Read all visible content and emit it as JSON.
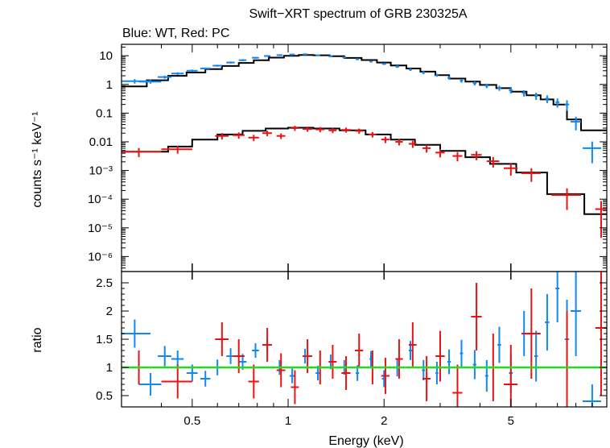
{
  "chart_data": [
    {
      "type": "scatter",
      "title": "Swift−XRT spectrum of GRB 230325A",
      "subtitle": "Blue: WT, Red: PC",
      "ylabel": "counts s⁻¹ keV⁻¹",
      "xlabel": "",
      "x_scale": "log",
      "y_scale": "log",
      "xlim": [
        0.3,
        10
      ],
      "ylim": [
        3e-07,
        25
      ],
      "y_tick_labels": [
        "10",
        "1",
        "0.1",
        "0.01",
        "10⁻³",
        "10⁻⁴",
        "10⁻⁵",
        "10⁻⁶"
      ],
      "y_tick_values": [
        10,
        1,
        0.1,
        0.01,
        0.001,
        0.0001,
        1e-05,
        1e-06
      ],
      "colors": {
        "wt": "#1188ee",
        "pc": "#ee1111",
        "model": "#000000"
      },
      "series": [
        {
          "key": "wt",
          "x": [
            0.33,
            0.37,
            0.41,
            0.45,
            0.5,
            0.55,
            0.6,
            0.66,
            0.72,
            0.79,
            0.86,
            0.94,
            1.03,
            1.13,
            1.24,
            1.36,
            1.5,
            1.65,
            1.82,
            2.0,
            2.2,
            2.42,
            2.66,
            2.93,
            3.2,
            3.5,
            3.85,
            4.2,
            4.6,
            5.0,
            5.5,
            6.0,
            6.5,
            7.0,
            7.5,
            8.0,
            9.0
          ],
          "y": [
            1.3,
            1.25,
            1.8,
            2.4,
            3.0,
            3.6,
            4.5,
            5.8,
            7.0,
            8.5,
            9.8,
            10.5,
            11.0,
            11.2,
            10.4,
            9.6,
            8.8,
            7.6,
            6.3,
            5.2,
            4.2,
            3.3,
            2.6,
            2.1,
            1.7,
            1.35,
            1.1,
            0.9,
            0.75,
            0.62,
            0.5,
            0.4,
            0.32,
            0.24,
            0.2,
            0.05,
            0.006
          ],
          "xerr": [
            0.04,
            0.03,
            0.02,
            0.02,
            0.02,
            0.02,
            0.02,
            0.02,
            0.02,
            0.02,
            0.02,
            0.02,
            0.02,
            0.02,
            0.02,
            0.02,
            0.02,
            0.02,
            0.02,
            0.03,
            0.03,
            0.03,
            0.03,
            0.03,
            0.04,
            0.04,
            0.05,
            0.05,
            0.06,
            0.07,
            0.08,
            0.08,
            0.1,
            0.1,
            0.12,
            0.3,
            0.6
          ],
          "yerr_rel": [
            0.18,
            0.15,
            0.12,
            0.1,
            0.1,
            0.08,
            0.08,
            0.08,
            0.08,
            0.07,
            0.07,
            0.07,
            0.07,
            0.07,
            0.07,
            0.07,
            0.07,
            0.08,
            0.08,
            0.08,
            0.1,
            0.1,
            0.12,
            0.12,
            0.14,
            0.15,
            0.16,
            0.18,
            0.2,
            0.22,
            0.25,
            0.28,
            0.3,
            0.35,
            0.4,
            0.5,
            0.7
          ]
        },
        {
          "key": "pc",
          "x": [
            0.34,
            0.45,
            0.62,
            0.7,
            0.78,
            0.86,
            0.95,
            1.05,
            1.15,
            1.26,
            1.38,
            1.52,
            1.67,
            1.84,
            2.02,
            2.23,
            2.46,
            2.72,
            3.0,
            3.4,
            3.9,
            4.4,
            5.0,
            5.8,
            7.5,
            9.6
          ],
          "y": [
            0.0045,
            0.0055,
            0.016,
            0.017,
            0.014,
            0.02,
            0.016,
            0.03,
            0.028,
            0.027,
            0.025,
            0.026,
            0.024,
            0.018,
            0.012,
            0.01,
            0.0085,
            0.006,
            0.0042,
            0.0032,
            0.0035,
            0.0021,
            0.0012,
            0.0008,
            0.00014,
            4.5e-05
          ],
          "xerr": [
            0.06,
            0.05,
            0.03,
            0.03,
            0.03,
            0.03,
            0.03,
            0.03,
            0.04,
            0.04,
            0.04,
            0.05,
            0.05,
            0.05,
            0.06,
            0.06,
            0.07,
            0.08,
            0.1,
            0.12,
            0.15,
            0.2,
            0.25,
            0.4,
            0.8,
            0.4
          ],
          "yerr_rel": [
            0.35,
            0.3,
            0.25,
            0.25,
            0.25,
            0.22,
            0.22,
            0.2,
            0.2,
            0.2,
            0.2,
            0.2,
            0.2,
            0.22,
            0.25,
            0.25,
            0.28,
            0.3,
            0.32,
            0.35,
            0.35,
            0.4,
            0.45,
            0.5,
            0.7,
            0.9
          ]
        }
      ],
      "model": [
        {
          "key": "wt",
          "edges": [
            0.3,
            0.36,
            0.42,
            0.48,
            0.55,
            0.62,
            0.7,
            0.78,
            0.87,
            0.97,
            1.08,
            1.2,
            1.35,
            1.5,
            1.7,
            1.9,
            2.1,
            2.35,
            2.6,
            2.9,
            3.2,
            3.6,
            4.0,
            4.5,
            5.0,
            5.6,
            6.2,
            6.8,
            7.5,
            8.3,
            10
          ],
          "values": [
            0.85,
            1.4,
            2.0,
            2.6,
            3.4,
            4.4,
            5.6,
            7.0,
            8.6,
            10.0,
            10.6,
            10.4,
            9.6,
            8.4,
            7.1,
            5.8,
            4.6,
            3.6,
            2.8,
            2.1,
            1.6,
            1.25,
            0.96,
            0.74,
            0.56,
            0.42,
            0.3,
            0.2,
            0.06,
            0.025
          ]
        },
        {
          "key": "pc",
          "edges": [
            0.3,
            0.42,
            0.5,
            0.6,
            0.72,
            0.85,
            1.0,
            1.2,
            1.45,
            1.75,
            2.1,
            2.5,
            3.0,
            3.6,
            4.3,
            5.2,
            6.5,
            8.5,
            10
          ],
          "values": [
            0.0045,
            0.0068,
            0.012,
            0.018,
            0.024,
            0.029,
            0.031,
            0.029,
            0.025,
            0.018,
            0.012,
            0.0078,
            0.0048,
            0.0029,
            0.0017,
            0.00085,
            0.00015,
            3e-05
          ]
        }
      ]
    },
    {
      "type": "scatter",
      "ylabel": "ratio",
      "xlabel": "Energy (keV)",
      "x_scale": "log",
      "xlim": [
        0.3,
        10
      ],
      "ylim": [
        0.3,
        2.7
      ],
      "x_tick_labels": [
        "0.5",
        "1",
        "2",
        "5"
      ],
      "x_tick_values": [
        0.5,
        1,
        2,
        5
      ],
      "y_tick_labels": [
        "2.5",
        "2",
        "1.5",
        "1",
        "0.5"
      ],
      "y_tick_values": [
        2.5,
        2,
        1.5,
        1,
        0.5
      ],
      "reference_line": {
        "y": 1,
        "color": "#22dd22"
      },
      "series": [
        {
          "key": "wt",
          "x": [
            0.33,
            0.37,
            0.41,
            0.45,
            0.5,
            0.55,
            0.6,
            0.66,
            0.72,
            0.79,
            0.86,
            0.94,
            1.03,
            1.13,
            1.24,
            1.36,
            1.5,
            1.65,
            1.82,
            2.0,
            2.2,
            2.42,
            2.66,
            2.93,
            3.2,
            3.5,
            3.85,
            4.2,
            4.6,
            5.0,
            5.5,
            6.0,
            6.5,
            7.0,
            7.5,
            8.0,
            9.0
          ],
          "y": [
            1.6,
            0.7,
            1.2,
            1.15,
            0.9,
            0.8,
            1.0,
            1.2,
            1.1,
            1.3,
            1.4,
            1.0,
            0.85,
            1.2,
            0.9,
            1.1,
            1.0,
            0.9,
            1.15,
            0.8,
            1.0,
            1.3,
            0.95,
            0.9,
            1.1,
            1.25,
            1.05,
            0.85,
            1.4,
            0.9,
            1.6,
            1.2,
            1.8,
            2.4,
            1.5,
            2.0,
            0.4
          ],
          "xerr": [
            0.04,
            0.03,
            0.02,
            0.02,
            0.02,
            0.02,
            0.02,
            0.02,
            0.02,
            0.02,
            0.02,
            0.02,
            0.02,
            0.02,
            0.02,
            0.02,
            0.02,
            0.02,
            0.02,
            0.03,
            0.03,
            0.03,
            0.03,
            0.03,
            0.04,
            0.04,
            0.05,
            0.05,
            0.06,
            0.07,
            0.08,
            0.08,
            0.1,
            0.1,
            0.12,
            0.3,
            0.6
          ],
          "yerr": [
            0.25,
            0.2,
            0.18,
            0.15,
            0.15,
            0.14,
            0.14,
            0.14,
            0.14,
            0.13,
            0.13,
            0.13,
            0.13,
            0.13,
            0.13,
            0.13,
            0.13,
            0.14,
            0.14,
            0.15,
            0.16,
            0.17,
            0.18,
            0.2,
            0.22,
            0.24,
            0.26,
            0.28,
            0.32,
            0.35,
            0.4,
            0.45,
            0.5,
            0.6,
            0.7,
            0.8,
            0.3
          ]
        },
        {
          "key": "pc",
          "x": [
            0.34,
            0.45,
            0.62,
            0.7,
            0.78,
            0.86,
            0.95,
            1.05,
            1.15,
            1.26,
            1.38,
            1.52,
            1.67,
            1.84,
            2.02,
            2.23,
            2.46,
            2.72,
            3.0,
            3.4,
            3.9,
            4.4,
            5.0,
            5.8,
            7.5,
            9.6
          ],
          "y": [
            1.0,
            0.75,
            1.5,
            1.2,
            0.75,
            1.4,
            0.95,
            0.65,
            1.2,
            1.0,
            1.1,
            0.9,
            1.3,
            1.0,
            0.85,
            1.15,
            1.4,
            0.8,
            1.2,
            0.55,
            1.9,
            1.0,
            0.7,
            1.6,
            1.0,
            1.7
          ],
          "xerr": [
            0.06,
            0.05,
            0.03,
            0.03,
            0.03,
            0.03,
            0.03,
            0.03,
            0.04,
            0.04,
            0.04,
            0.05,
            0.05,
            0.05,
            0.06,
            0.06,
            0.07,
            0.08,
            0.1,
            0.12,
            0.15,
            0.2,
            0.25,
            0.4,
            0.8,
            0.4
          ],
          "yerr": [
            0.3,
            0.3,
            0.3,
            0.3,
            0.3,
            0.3,
            0.3,
            0.3,
            0.3,
            0.3,
            0.3,
            0.3,
            0.3,
            0.3,
            0.32,
            0.35,
            0.4,
            0.4,
            0.45,
            0.5,
            0.6,
            0.6,
            0.7,
            0.8,
            1.0,
            1.2
          ]
        }
      ]
    }
  ]
}
